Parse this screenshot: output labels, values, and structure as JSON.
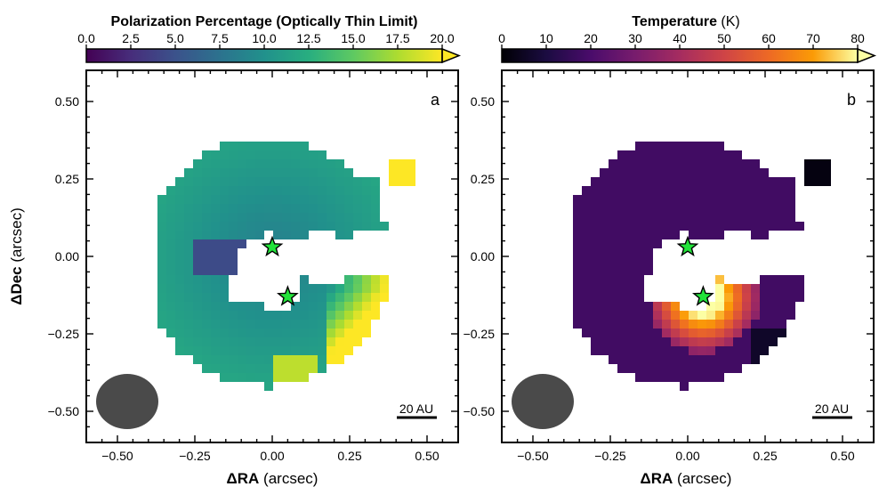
{
  "chart_data": [
    {
      "type": "heatmap",
      "panel_label": "a",
      "colorbar": {
        "title_bold": "Polarization Percentage (Optically Thin Limit)",
        "title_unit": "",
        "ticks": [
          "0.0",
          "2.5",
          "5.0",
          "7.5",
          "10.0",
          "12.5",
          "15.0",
          "17.5",
          "20.0"
        ],
        "range": [
          0,
          20
        ],
        "colormap": "viridis",
        "extend": "max"
      },
      "xlabel_prefix": "ΔRA",
      "xlabel_suffix": " (arcsec)",
      "ylabel_prefix": "ΔDec",
      "ylabel_suffix": " (arcsec)",
      "xlim": [
        -0.6,
        0.6
      ],
      "ylim": [
        -0.6,
        0.6
      ],
      "xticks": [
        "−0.50",
        "−0.25",
        "0.00",
        "0.25",
        "0.50"
      ],
      "yticks": [
        "0.50",
        "0.25",
        "0.00",
        "−0.25",
        "−0.50"
      ],
      "scalebar_label": "20 AU",
      "stars": [
        [
          0.0,
          0.03
        ],
        [
          0.05,
          -0.13
        ]
      ],
      "beam": {
        "x": -0.47,
        "y": -0.47,
        "major": 0.19,
        "minor": 0.17
      },
      "value_range_note": "central band ~3-6%, outer ring ~9-12%, edges up to ~20%"
    },
    {
      "type": "heatmap",
      "panel_label": "b",
      "colorbar": {
        "title_bold": "Temperature",
        "title_unit": " (K)",
        "ticks": [
          "0",
          "10",
          "20",
          "30",
          "40",
          "50",
          "60",
          "70",
          "80"
        ],
        "range": [
          0,
          80
        ],
        "colormap": "inferno",
        "extend": "max"
      },
      "xlabel_prefix": "ΔRA",
      "xlabel_suffix": " (arcsec)",
      "xlim": [
        -0.6,
        0.6
      ],
      "ylim": [
        -0.6,
        0.6
      ],
      "xticks": [
        "−0.50",
        "−0.25",
        "0.00",
        "0.25",
        "0.50"
      ],
      "yticks": [
        "0.50",
        "0.25",
        "0.00",
        "−0.25",
        "−0.50"
      ],
      "scalebar_label": "20 AU",
      "stars": [
        [
          0.0,
          0.03
        ],
        [
          0.05,
          -0.13
        ]
      ],
      "beam": {
        "x": -0.47,
        "y": -0.47,
        "major": 0.19,
        "minor": 0.17
      },
      "value_range_note": "disk ~15-25 K, inner rim near secondary star up to ~80 K"
    }
  ],
  "colors": {
    "star_fill": "#22e33a",
    "beam_fill": "#4a4a4a"
  }
}
